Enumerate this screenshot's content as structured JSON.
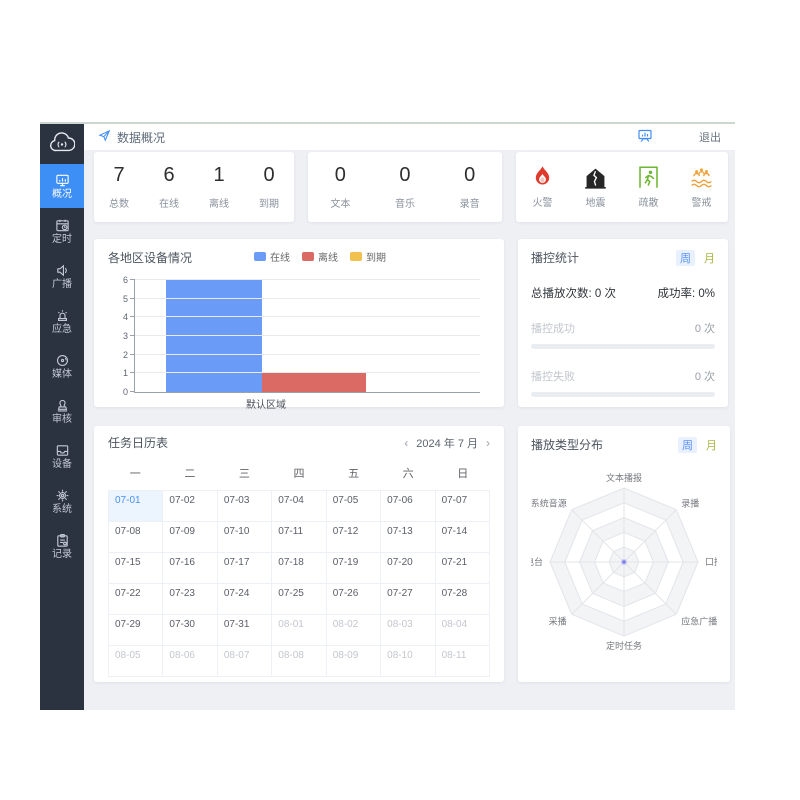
{
  "topbar": {
    "breadcrumb": "数据概况",
    "nav_icon": "send-icon",
    "screen_icon": "presentation-screen-icon",
    "logout_label": "退出"
  },
  "sidebar": {
    "logo_icon": "broadcast-cloud-icon",
    "items": [
      {
        "id": "overview",
        "label": "概况",
        "icon": "overview-icon",
        "active": true
      },
      {
        "id": "timing",
        "label": "定时",
        "icon": "timer-icon",
        "active": false
      },
      {
        "id": "broadcast",
        "label": "广播",
        "icon": "speaker-icon",
        "active": false
      },
      {
        "id": "emergency",
        "label": "应急",
        "icon": "siren-icon",
        "active": false
      },
      {
        "id": "media",
        "label": "媒体",
        "icon": "media-icon",
        "active": false
      },
      {
        "id": "audit",
        "label": "审核",
        "icon": "stamp-icon",
        "active": false
      },
      {
        "id": "device",
        "label": "设备",
        "icon": "device-icon",
        "active": false
      },
      {
        "id": "system",
        "label": "系统",
        "icon": "gear-icon",
        "active": false
      },
      {
        "id": "record",
        "label": "记录",
        "icon": "clipboard-icon",
        "active": false
      }
    ]
  },
  "stats": {
    "device_summary": [
      {
        "value": "7",
        "label": "总数"
      },
      {
        "value": "6",
        "label": "在线"
      },
      {
        "value": "1",
        "label": "离线"
      },
      {
        "value": "0",
        "label": "到期"
      }
    ],
    "media_summary": [
      {
        "value": "0",
        "label": "文本"
      },
      {
        "value": "0",
        "label": "音乐"
      },
      {
        "value": "0",
        "label": "录音"
      }
    ],
    "alarm_buttons": [
      {
        "label": "火警",
        "icon": "fire-icon",
        "color": "#df3b2c"
      },
      {
        "label": "地震",
        "icon": "earthquake-icon",
        "color": "#262626"
      },
      {
        "label": "疏散",
        "icon": "evacuation-icon",
        "color": "#6cb52f"
      },
      {
        "label": "警戒",
        "icon": "flood-alert-icon",
        "color": "#f0a23b"
      }
    ]
  },
  "chart_data": [
    {
      "type": "bar",
      "title": "各地区设备情况",
      "categories": [
        "默认区域"
      ],
      "series": [
        {
          "name": "在线",
          "values": [
            6
          ],
          "color": "#6a9bf7"
        },
        {
          "name": "离线",
          "values": [
            1
          ],
          "color": "#dc6a64"
        },
        {
          "name": "到期",
          "values": [
            0
          ],
          "color": "#f2c14d"
        }
      ],
      "ylim": [
        0,
        6
      ],
      "yticks": [
        0,
        1,
        2,
        3,
        4,
        5,
        6
      ],
      "grid": true,
      "legend_position": "top"
    },
    {
      "type": "radar",
      "title": "播放类型分布",
      "axes": [
        "文本播报",
        "录播",
        "口播",
        "应急广播",
        "定时任务",
        "采播",
        "FM电台",
        "系统音源"
      ],
      "series": [
        {
          "name": "播放类型",
          "values": [
            0,
            0,
            0,
            0,
            0,
            0,
            0,
            0
          ]
        }
      ],
      "rings": 5,
      "max": 1
    }
  ],
  "broadcast_stats": {
    "title": "播控统计",
    "tabs": [
      {
        "label": "周",
        "active": true
      },
      {
        "label": "月",
        "active": false
      }
    ],
    "total_label": "总播放次数:",
    "total_value": "0 次",
    "rate_label": "成功率:",
    "rate_value": "0%",
    "rows": [
      {
        "label": "播控成功",
        "value": "0 次",
        "progress": 0
      },
      {
        "label": "播控失败",
        "value": "0 次",
        "progress": 0
      }
    ]
  },
  "radar_panel": {
    "tabs": [
      {
        "label": "周",
        "active": true
      },
      {
        "label": "月",
        "active": false
      }
    ]
  },
  "calendar": {
    "title": "任务日历表",
    "prev_label": "‹",
    "next_label": "›",
    "month_label": "2024 年 7 月",
    "weekdays": [
      "一",
      "二",
      "三",
      "四",
      "五",
      "六",
      "日"
    ],
    "cells": [
      {
        "date": "07-01",
        "state": "selected"
      },
      {
        "date": "07-02",
        "state": "current"
      },
      {
        "date": "07-03",
        "state": "current"
      },
      {
        "date": "07-04",
        "state": "current"
      },
      {
        "date": "07-05",
        "state": "current"
      },
      {
        "date": "07-06",
        "state": "current"
      },
      {
        "date": "07-07",
        "state": "current"
      },
      {
        "date": "07-08",
        "state": "current"
      },
      {
        "date": "07-09",
        "state": "current"
      },
      {
        "date": "07-10",
        "state": "current"
      },
      {
        "date": "07-11",
        "state": "current"
      },
      {
        "date": "07-12",
        "state": "current"
      },
      {
        "date": "07-13",
        "state": "current"
      },
      {
        "date": "07-14",
        "state": "current"
      },
      {
        "date": "07-15",
        "state": "current"
      },
      {
        "date": "07-16",
        "state": "current"
      },
      {
        "date": "07-17",
        "state": "current"
      },
      {
        "date": "07-18",
        "state": "current"
      },
      {
        "date": "07-19",
        "state": "current"
      },
      {
        "date": "07-20",
        "state": "current"
      },
      {
        "date": "07-21",
        "state": "current"
      },
      {
        "date": "07-22",
        "state": "current"
      },
      {
        "date": "07-23",
        "state": "current"
      },
      {
        "date": "07-24",
        "state": "current"
      },
      {
        "date": "07-25",
        "state": "current"
      },
      {
        "date": "07-26",
        "state": "current"
      },
      {
        "date": "07-27",
        "state": "current"
      },
      {
        "date": "07-28",
        "state": "current"
      },
      {
        "date": "07-29",
        "state": "current"
      },
      {
        "date": "07-30",
        "state": "current"
      },
      {
        "date": "07-31",
        "state": "current"
      },
      {
        "date": "08-01",
        "state": "other"
      },
      {
        "date": "08-02",
        "state": "other"
      },
      {
        "date": "08-03",
        "state": "other"
      },
      {
        "date": "08-04",
        "state": "other"
      },
      {
        "date": "08-05",
        "state": "other"
      },
      {
        "date": "08-06",
        "state": "other"
      },
      {
        "date": "08-07",
        "state": "other"
      },
      {
        "date": "08-08",
        "state": "other"
      },
      {
        "date": "08-09",
        "state": "other"
      },
      {
        "date": "08-10",
        "state": "other"
      },
      {
        "date": "08-11",
        "state": "other"
      }
    ]
  }
}
